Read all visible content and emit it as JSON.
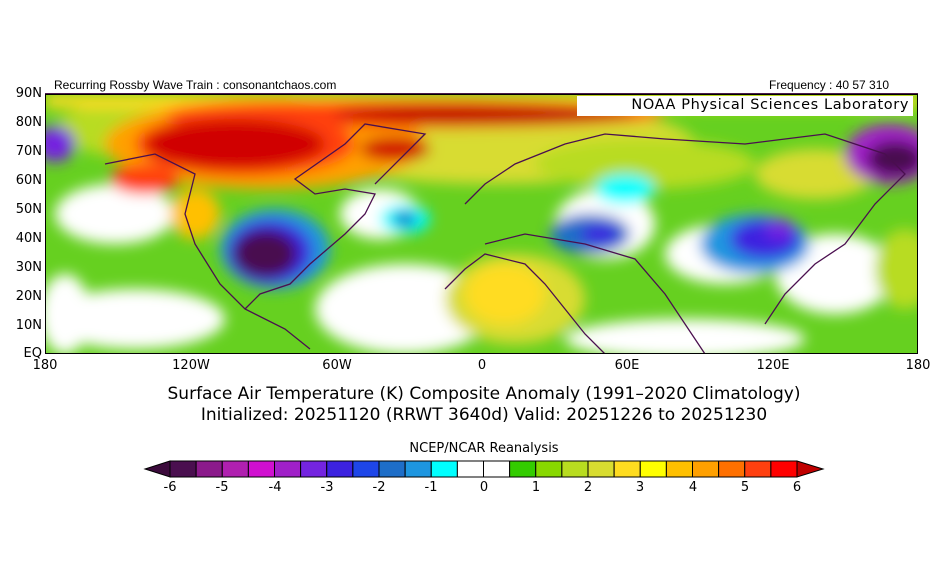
{
  "header": {
    "left": "Recurring Rossby Wave Train : consonantchaos.com",
    "right": "Frequency : 40 57 310",
    "watermark": "NOAA Physical Sciences Laboratory"
  },
  "map": {
    "lat_labels": [
      "90N",
      "80N",
      "70N",
      "60N",
      "50N",
      "40N",
      "30N",
      "20N",
      "10N",
      "EQ"
    ],
    "lon_labels": [
      "180",
      "120W",
      "60W",
      "0",
      "60E",
      "120E",
      "180"
    ]
  },
  "title": {
    "line1": "Surface Air Temperature (K) Composite Anomaly (1991–2020 Climatology)",
    "line2": "Initialized: 20251120 (RRWT 3640d) Valid: 20251226 to 20251230"
  },
  "colorbar": {
    "title": "NCEP/NCAR Reanalysis",
    "labels": [
      "-6",
      "-5",
      "-4",
      "-3",
      "-2",
      "-1",
      "0",
      "1",
      "2",
      "3",
      "4",
      "5",
      "6"
    ],
    "colors": [
      "#4a0f4f",
      "#8b1a8b",
      "#b020b0",
      "#d010d0",
      "#a020c8",
      "#7424e0",
      "#3c22e0",
      "#1e46e8",
      "#1e6ec8",
      "#1e96e0",
      "#00ffff",
      "#ffffff",
      "#ffffff",
      "#33cc00",
      "#88d800",
      "#b8dc20",
      "#d8dc30",
      "#ffdc20",
      "#ffff00",
      "#ffc000",
      "#ffa000",
      "#ff7000",
      "#ff4010",
      "#ff0000"
    ],
    "under_color": "#3b0a3b",
    "over_color": "#c00000"
  }
}
